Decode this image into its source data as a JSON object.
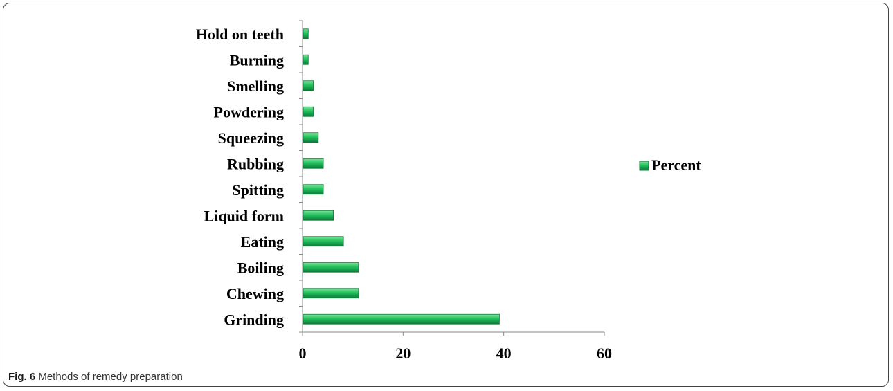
{
  "chart_data": {
    "type": "bar",
    "orientation": "horizontal",
    "categories": [
      "Grinding",
      "Chewing",
      "Boiling",
      "Eating",
      "Liquid form",
      "Spitting",
      "Rubbing",
      "Squeezing",
      "Powdering",
      "Smelling",
      "Burning",
      "Hold on teeth"
    ],
    "series": [
      {
        "name": "Percent",
        "values": [
          39,
          11,
          11,
          8,
          6,
          4,
          4,
          3,
          2,
          2,
          1,
          1
        ],
        "color": "#1fbf5c"
      }
    ],
    "xlim": [
      0,
      60
    ],
    "xticks": [
      "0",
      "20",
      "40",
      "60"
    ],
    "legend_position": "right",
    "grid": false
  },
  "caption": {
    "label": "Fig. 6",
    "text": "Methods of remedy preparation"
  }
}
